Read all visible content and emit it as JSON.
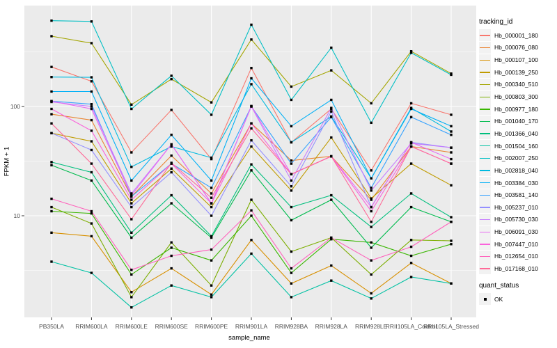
{
  "chart_data": {
    "type": "line",
    "title": "",
    "xlabel": "sample_name",
    "ylabel": "FPKM + 1",
    "y_scale": "log10",
    "ylim": [
      1.2,
      800
    ],
    "y_major_ticks": [
      100,
      10
    ],
    "y_minor_gridlines": [
      316.2,
      31.62,
      3.162
    ],
    "grid": "on",
    "legend_position": "right",
    "legend_title": "tracking_id",
    "panel_background": "#EBEBEB",
    "gridline_color": "#FFFFFF",
    "point_marker": {
      "shape": "square",
      "color": "#000000"
    },
    "categories": [
      "PB350LA",
      "RRIM600LA",
      "RRIM600LE",
      "RRIM600SE",
      "RRIM600PE",
      "RRIM901LA",
      "RRIM928BA",
      "RRIM928LA",
      "RRIM928LE",
      "RRII105LA_Control",
      "RRII105LA_Stressed"
    ],
    "series": [
      {
        "name": "Hb_000001_180",
        "color": "#F8766D",
        "values": [
          230,
          170,
          38,
          93,
          33,
          225,
          47,
          95,
          26,
          107,
          84
        ]
      },
      {
        "name": "Hb_000076_080",
        "color": "#EA8331",
        "values": [
          85,
          75,
          15,
          35.5,
          16,
          70,
          32,
          35,
          14,
          43,
          38
        ]
      },
      {
        "name": "Hb_000107_100",
        "color": "#D89000",
        "values": [
          7,
          6.5,
          2.0,
          3.3,
          1.9,
          6.0,
          2.4,
          3.5,
          1.95,
          3.7,
          2.4
        ]
      },
      {
        "name": "Hb_000139_250",
        "color": "#C09B00",
        "values": [
          57,
          48,
          13,
          27,
          12,
          43,
          17,
          52,
          14.4,
          30,
          19
        ]
      },
      {
        "name": "Hb_000340_510",
        "color": "#A3A500",
        "values": [
          440,
          380,
          104,
          178,
          109,
          410,
          152,
          214,
          107,
          320,
          200
        ]
      },
      {
        "name": "Hb_000803_300",
        "color": "#7CAE00",
        "values": [
          12,
          8.5,
          1.8,
          5.7,
          2.3,
          14,
          4.7,
          6.3,
          2.9,
          6.0,
          5.9
        ]
      },
      {
        "name": "Hb_000977_180",
        "color": "#39B600",
        "values": [
          11,
          10.5,
          2.9,
          5.1,
          3.9,
          10,
          3.0,
          6.1,
          5.7,
          4.3,
          5.5
        ]
      },
      {
        "name": "Hb_001040_170",
        "color": "#00BB4E",
        "values": [
          29,
          21,
          6.3,
          13,
          6.3,
          26,
          9.1,
          14,
          5.1,
          12,
          8.8
        ]
      },
      {
        "name": "Hb_001366_040",
        "color": "#00BF7D",
        "values": [
          31,
          25,
          7.0,
          15.4,
          6.5,
          29.5,
          12,
          15.4,
          7.9,
          16,
          9.7
        ]
      },
      {
        "name": "Hb_001504_160",
        "color": "#00C1A3",
        "values": [
          3.8,
          3.0,
          1.45,
          2.3,
          1.8,
          4.5,
          1.8,
          2.55,
          1.75,
          2.75,
          2.4
        ]
      },
      {
        "name": "Hb_002007_250",
        "color": "#00BFC4",
        "values": [
          610,
          600,
          95,
          191,
          84,
          560,
          115,
          345,
          71,
          310,
          195
        ]
      },
      {
        "name": "Hb_002818_040",
        "color": "#00BAE0",
        "values": [
          186,
          185,
          28,
          43,
          34,
          160,
          47,
          81,
          22,
          97,
          59
        ]
      },
      {
        "name": "Hb_003384_030",
        "color": "#00B0F6",
        "values": [
          137,
          137,
          21,
          55,
          21,
          181,
          66,
          115,
          22,
          95,
          66
        ]
      },
      {
        "name": "Hb_003581_140",
        "color": "#35A2FF",
        "values": [
          112,
          105,
          15,
          30,
          18,
          100,
          30,
          80,
          18,
          80,
          55
        ]
      },
      {
        "name": "Hb_005237_010",
        "color": "#9590FF",
        "values": [
          57,
          40,
          12,
          25,
          10,
          49,
          18.6,
          90,
          12,
          47,
          42
        ]
      },
      {
        "name": "Hb_005730_030",
        "color": "#C77CFF",
        "values": [
          110,
          100,
          16,
          45,
          13,
          100,
          21,
          97,
          17,
          46,
          42
        ]
      },
      {
        "name": "Hb_006091_030",
        "color": "#E76BF3",
        "values": [
          112,
          95,
          15.4,
          45,
          13,
          101,
          24,
          35,
          12,
          47,
          33
        ]
      },
      {
        "name": "Hb_007447_010",
        "color": "#FA62DB",
        "values": [
          95,
          60,
          14,
          30,
          13,
          70,
          24,
          35,
          11,
          43,
          30
        ]
      },
      {
        "name": "Hb_012654_010",
        "color": "#FF62BC",
        "values": [
          14.3,
          11,
          3.2,
          4.3,
          4.9,
          11.2,
          3.3,
          6.3,
          3.9,
          5.2,
          8.8
        ]
      },
      {
        "name": "Hb_017168_010",
        "color": "#FF6A98",
        "values": [
          70,
          30,
          9.3,
          30.5,
          14.6,
          63,
          24,
          35,
          8.8,
          43,
          30
        ]
      }
    ],
    "quant_status_legend": {
      "title": "quant_status",
      "items": [
        "OK"
      ]
    }
  }
}
